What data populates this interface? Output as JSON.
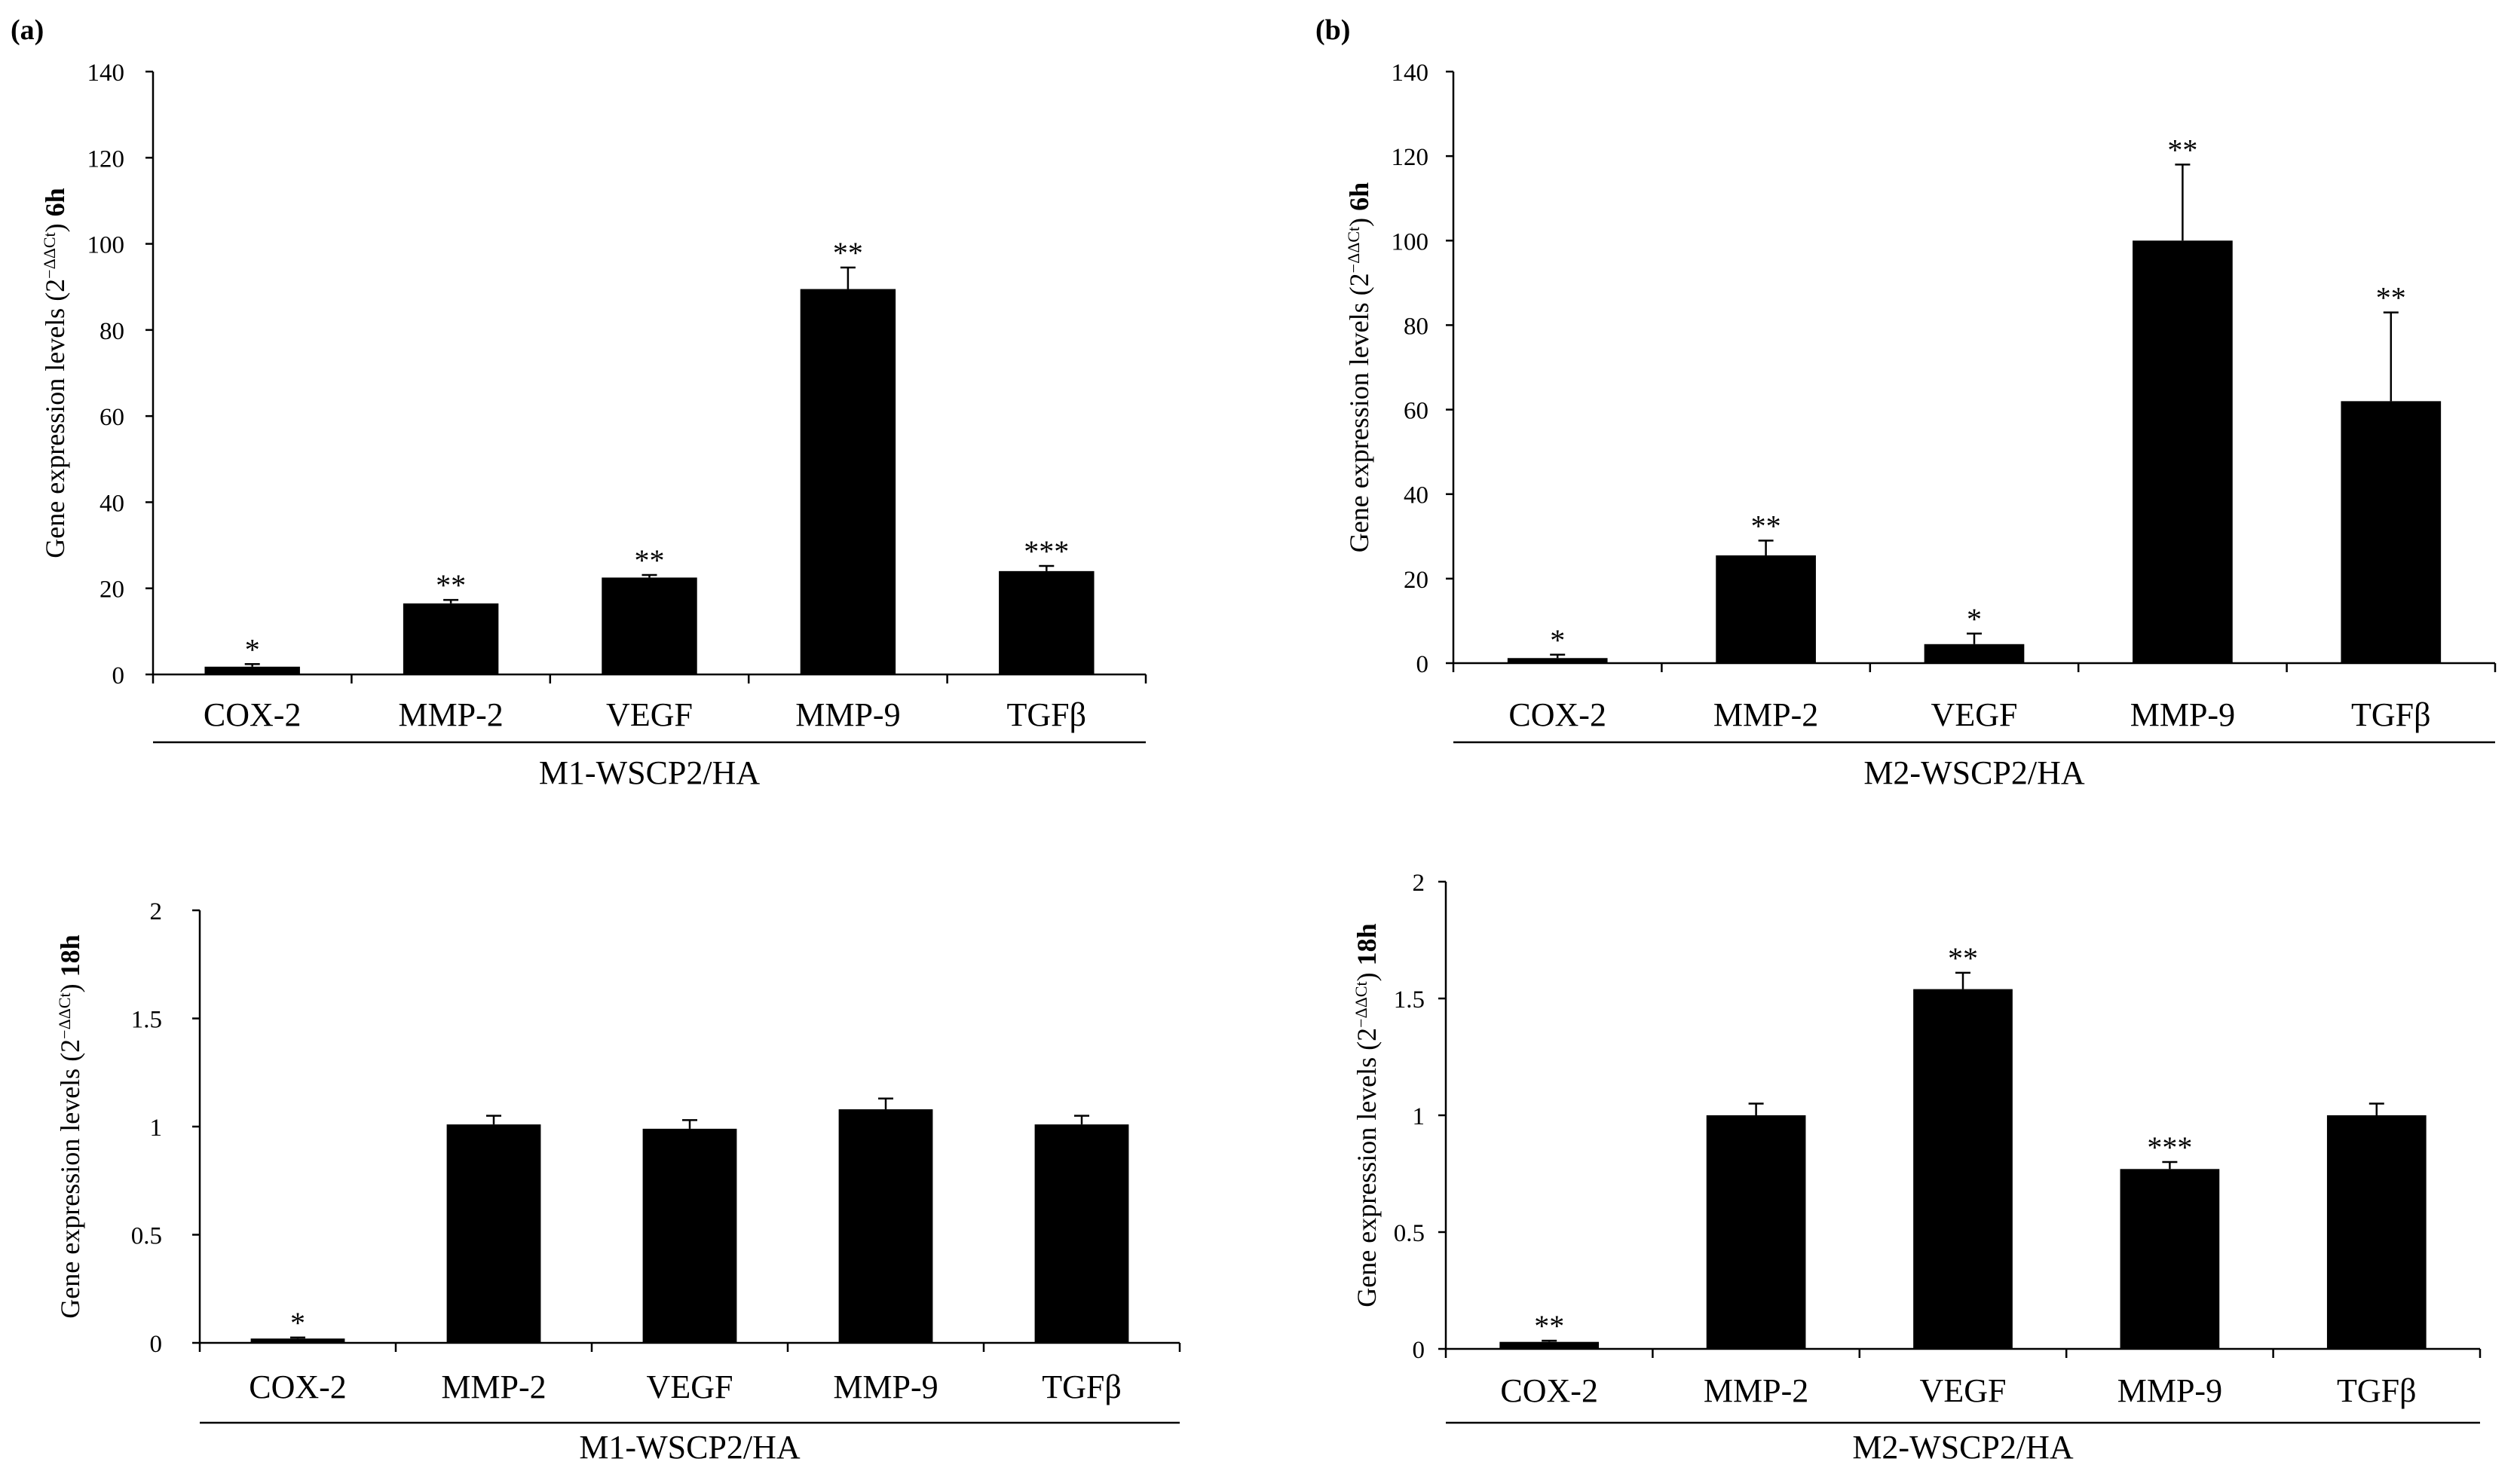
{
  "panel_labels": [
    "(a)",
    "(b)"
  ],
  "chart_data": [
    {
      "type": "bar",
      "panel": "(a)",
      "categories": [
        "COX-2",
        "MMP-2",
        "VEGF",
        "MMP-9",
        "TGFβ"
      ],
      "values": [
        1.8,
        16.5,
        22.5,
        89.5,
        24.0
      ],
      "errors": [
        0.6,
        0.8,
        0.6,
        5.0,
        1.2
      ],
      "significance": [
        "*",
        "**",
        "**",
        "**",
        "***"
      ],
      "ylabel_text": "Gene expression levels (2",
      "ylabel_sup": "−ΔΔCt",
      "ylabel_after": ")",
      "ylabel_bold": "6h",
      "xlabel": "M1-WSCP2/HA",
      "ylim": [
        0,
        140
      ],
      "yticks": [
        0,
        20,
        40,
        60,
        80,
        100,
        120,
        140
      ],
      "ytick_labels": [
        "0",
        "20",
        "40",
        "60",
        "80",
        "100",
        "120",
        "140"
      ]
    },
    {
      "type": "bar",
      "panel": "(b)",
      "categories": [
        "COX-2",
        "MMP-2",
        "VEGF",
        "MMP-9",
        "TGFβ"
      ],
      "values": [
        1.2,
        25.5,
        4.5,
        100.0,
        62.0
      ],
      "errors": [
        0.8,
        3.5,
        2.5,
        18.0,
        21.0
      ],
      "significance": [
        "*",
        "**",
        "*",
        "**",
        "**"
      ],
      "ylabel_text": "Gene expression levels (2",
      "ylabel_sup": "−ΔΔCt",
      "ylabel_after": ")",
      "ylabel_bold": "6h",
      "xlabel": "M2-WSCP2/HA",
      "ylim": [
        0,
        140
      ],
      "yticks": [
        0,
        20,
        40,
        60,
        80,
        100,
        120,
        140
      ],
      "ytick_labels": [
        "0",
        "20",
        "40",
        "60",
        "80",
        "100",
        "120",
        "140"
      ]
    },
    {
      "type": "bar",
      "panel": "(a)",
      "categories": [
        "COX-2",
        "MMP-2",
        "VEGF",
        "MMP-9",
        "TGFβ"
      ],
      "values": [
        0.02,
        1.01,
        0.99,
        1.08,
        1.01
      ],
      "errors": [
        0.005,
        0.04,
        0.04,
        0.05,
        0.04
      ],
      "significance": [
        "*",
        "",
        "",
        "",
        ""
      ],
      "ylabel_text": "Gene expression levels (2",
      "ylabel_sup": "−ΔΔCt",
      "ylabel_after": ")",
      "ylabel_bold": "18h",
      "xlabel": "M1-WSCP2/HA",
      "ylim": [
        0,
        2
      ],
      "yticks": [
        0,
        0.5,
        1,
        1.5,
        2
      ],
      "ytick_labels": [
        "0",
        "0.5",
        "1",
        "1.5",
        "2"
      ]
    },
    {
      "type": "bar",
      "panel": "(b)",
      "categories": [
        "COX-2",
        "MMP-2",
        "VEGF",
        "MMP-9",
        "TGFβ"
      ],
      "values": [
        0.03,
        1.0,
        1.54,
        0.77,
        1.0
      ],
      "errors": [
        0.005,
        0.05,
        0.07,
        0.03,
        0.05
      ],
      "significance": [
        "**",
        "",
        "**",
        "***",
        ""
      ],
      "ylabel_text": "Gene expression levels (2",
      "ylabel_sup": "−ΔΔCt",
      "ylabel_after": ")",
      "ylabel_bold": "18h",
      "xlabel": "M2-WSCP2/HA",
      "ylim": [
        0,
        2
      ],
      "yticks": [
        0,
        0.5,
        1,
        1.5,
        2
      ],
      "ytick_labels": [
        "0",
        "0.5",
        "1",
        "1.5",
        "2"
      ]
    }
  ]
}
